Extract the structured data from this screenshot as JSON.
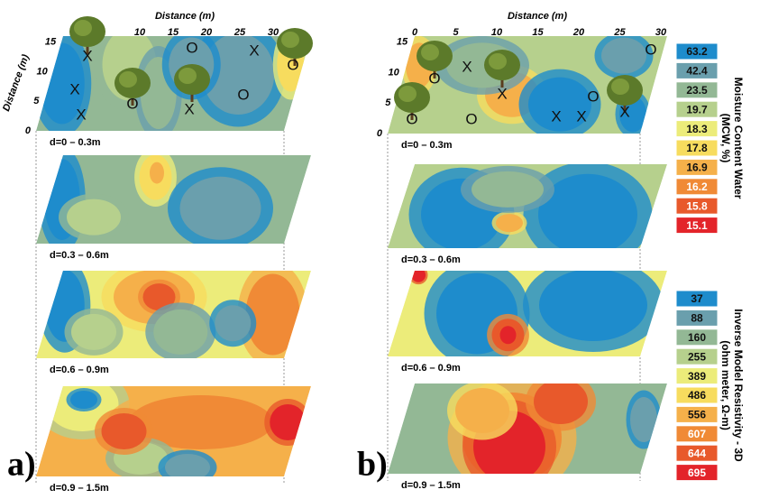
{
  "panels": [
    {
      "label": "a)",
      "x_axis_title": "Distance  (m)",
      "y_axis_title": "Distance (m)",
      "x_ticks": [
        "10",
        "15",
        "20",
        "25",
        "30"
      ],
      "y_ticks": [
        "0",
        "5",
        "10",
        "15"
      ],
      "layers": [
        "d=0 – 0.3m",
        "d=0.3 – 0.6m",
        "d=0.6 – 0.9m",
        "d=0.9 – 1.5m"
      ],
      "markers": [
        "X",
        "X",
        "X",
        "O",
        "O",
        "X",
        "X",
        "O",
        "O"
      ]
    },
    {
      "label": "b)",
      "x_axis_title": "Distance  (m)",
      "x_ticks": [
        "0",
        "5",
        "10",
        "15",
        "20",
        "25",
        "30"
      ],
      "y_ticks": [
        "0",
        "5",
        "10",
        "15"
      ],
      "layers": [
        "d=0 – 0.3m",
        "d=0.3 – 0.6m",
        "d=0.6 – 0.9m",
        "d=0.9 – 1.5m"
      ],
      "markers": [
        "O",
        "X",
        "X",
        "O",
        "O",
        "X",
        "O",
        "X",
        "O",
        "X"
      ]
    }
  ],
  "legends": [
    {
      "title": "Moisture Content Water",
      "subtitle": "(MCW, %)",
      "values": [
        63.2,
        42.4,
        23.5,
        19.7,
        18.3,
        17.8,
        16.9,
        16.2,
        15.8,
        15.1
      ]
    },
    {
      "title": "Inverse Model Resistivity - 3D",
      "subtitle": "(ohm meter, Ω-m)",
      "values": [
        37,
        88,
        160,
        255,
        389,
        486,
        556,
        607,
        644,
        695
      ]
    }
  ]
}
